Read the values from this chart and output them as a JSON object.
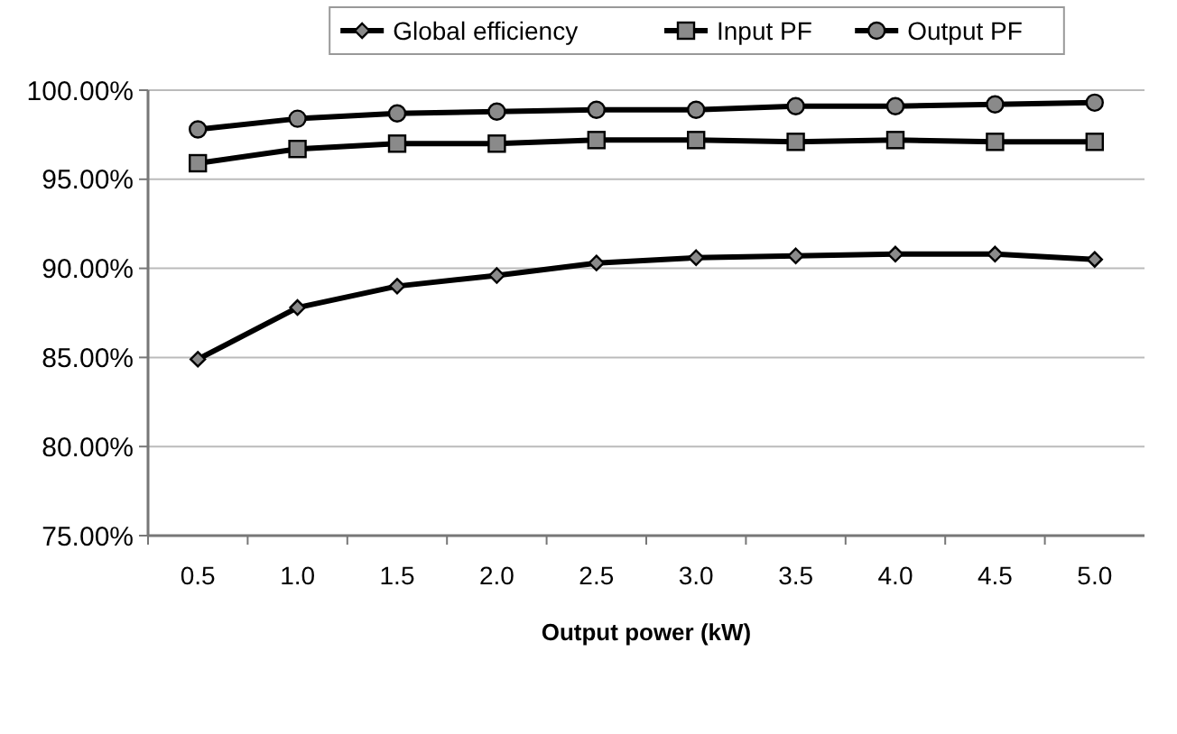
{
  "chart_data": {
    "type": "line",
    "xlabel": "Output power (kW)",
    "categories": [
      "0.5",
      "1.0",
      "1.5",
      "2.0",
      "2.5",
      "3.0",
      "3.5",
      "4.0",
      "4.5",
      "5.0"
    ],
    "ylim": [
      75,
      100
    ],
    "yticks": [
      {
        "value": 75,
        "label": "75.00%"
      },
      {
        "value": 80,
        "label": "80.00%"
      },
      {
        "value": 85,
        "label": "85.00%"
      },
      {
        "value": 90,
        "label": "90.00%"
      },
      {
        "value": 95,
        "label": "95.00%"
      },
      {
        "value": 100,
        "label": "100.00%"
      }
    ],
    "grid": "y",
    "legend": "top",
    "line_style": "solid",
    "series": [
      {
        "name": "Global efficiency",
        "color": "#000000",
        "marker": "diamond",
        "values": [
          84.9,
          87.8,
          89.0,
          89.6,
          90.3,
          90.6,
          90.7,
          90.8,
          90.8,
          90.5
        ]
      },
      {
        "name": "Input PF",
        "color": "#000000",
        "marker": "square",
        "values": [
          95.9,
          96.7,
          97.0,
          97.0,
          97.2,
          97.2,
          97.1,
          97.2,
          97.1,
          97.1
        ]
      },
      {
        "name": "Output PF",
        "color": "#000000",
        "marker": "circle",
        "values": [
          97.8,
          98.4,
          98.7,
          98.8,
          98.9,
          98.9,
          99.1,
          99.1,
          99.2,
          99.3
        ]
      }
    ]
  }
}
